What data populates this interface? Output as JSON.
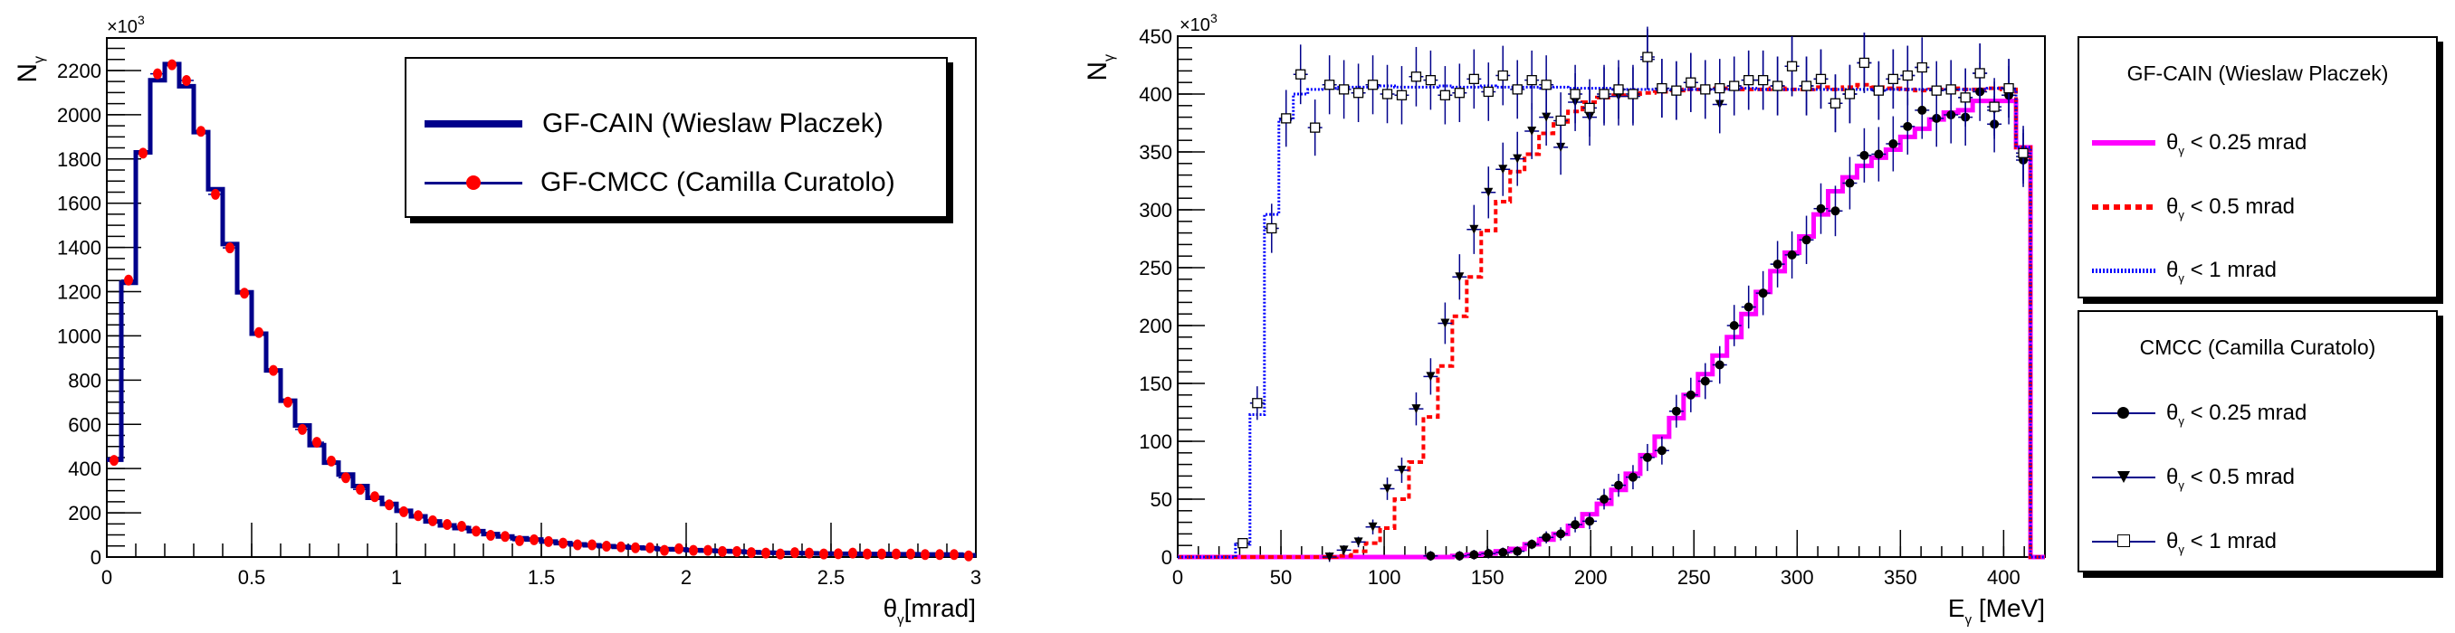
{
  "chart_data": [
    {
      "type": "bar",
      "panel": "left",
      "title": "",
      "xlabel": "θ",
      "xlabel_sub": "γ",
      "xlabel_unit": "[mrad]",
      "ylabel": "N",
      "ylabel_sub": "γ",
      "y_multiplier": "×10",
      "y_multiplier_exp": "3",
      "xlim": [
        0,
        3
      ],
      "ylim": [
        0,
        2347
      ],
      "x_ticks": [
        "0",
        "0.5",
        "1",
        "1.5",
        "2",
        "2.5",
        "3"
      ],
      "x_tick_values": [
        0,
        0.5,
        1,
        1.5,
        2,
        2.5,
        3
      ],
      "y_ticks": [
        "0",
        "200",
        "400",
        "600",
        "800",
        "1000",
        "1200",
        "1400",
        "1600",
        "1800",
        "2000",
        "2200"
      ],
      "y_tick_values": [
        0,
        200,
        400,
        600,
        800,
        1000,
        1200,
        1400,
        1600,
        1800,
        2000,
        2200
      ],
      "bin_width": 0.05,
      "legend": {
        "position": "top-right",
        "entries": [
          {
            "label": "GF-CAIN (Wieslaw Placzek)",
            "style": "line",
            "color": "#00008b"
          },
          {
            "label": "GF-CMCC (Camilla Curatolo)",
            "style": "marker",
            "color": "#ff0000",
            "line_color": "#00008b"
          }
        ]
      },
      "series": [
        {
          "name": "GF-CAIN (Wieslaw Placzek)",
          "kind": "histogram",
          "color": "#00008b",
          "values": [
            440,
            1240,
            1830,
            2156,
            2229,
            2129,
            1921,
            1663,
            1415,
            1197,
            1010,
            844,
            707,
            595,
            506,
            427,
            373,
            321,
            268,
            240,
            209,
            184,
            161,
            143,
            131,
            117,
            104,
            93,
            85,
            79,
            70,
            63,
            57,
            53,
            49,
            46,
            43,
            40,
            36,
            34,
            31,
            29,
            27,
            25,
            22,
            20,
            19,
            18,
            17,
            16,
            15,
            15,
            14,
            14,
            13,
            13,
            12,
            12,
            11,
            8
          ]
        },
        {
          "name": "GF-CMCC (Camilla Curatolo)",
          "kind": "points",
          "color": "#ff0000",
          "values": [
            437,
            1252,
            1826,
            2185,
            2226,
            2155,
            1925,
            1640,
            1398,
            1193,
            1015,
            844,
            700,
            577,
            519,
            434,
            359,
            306,
            273,
            236,
            205,
            187,
            164,
            147,
            139,
            117,
            98,
            93,
            74,
            78,
            70,
            63,
            55,
            55,
            49,
            46,
            42,
            42,
            30,
            38,
            30,
            30,
            25,
            25,
            20,
            18,
            14,
            20,
            18,
            14,
            15,
            18,
            14,
            14,
            14,
            14,
            11,
            11,
            11,
            5
          ]
        }
      ]
    },
    {
      "type": "bar",
      "panel": "right",
      "title": "",
      "xlabel": "E",
      "xlabel_sub": "γ",
      "xlabel_unit": " [MeV]",
      "ylabel": "N",
      "ylabel_sub": "γ",
      "y_multiplier": "×10",
      "y_multiplier_exp": "3",
      "xlim": [
        0,
        420
      ],
      "ylim": [
        0,
        450
      ],
      "x_ticks": [
        "0",
        "50",
        "100",
        "150",
        "200",
        "250",
        "300",
        "350",
        "400"
      ],
      "x_tick_values": [
        0,
        50,
        100,
        150,
        200,
        250,
        300,
        350,
        400
      ],
      "y_ticks": [
        "0",
        "50",
        "100",
        "150",
        "200",
        "250",
        "300",
        "350",
        "400",
        "450"
      ],
      "y_tick_values": [
        0,
        50,
        100,
        150,
        200,
        250,
        300,
        350,
        400,
        450
      ],
      "bin_width": 7,
      "legend": {
        "position": "right",
        "groups": [
          {
            "title": "GF-CAIN (Wieslaw Placzek)",
            "entries": [
              {
                "theta": "θ",
                "sub": "γ",
                "label": " < 0.25 mrad",
                "style": "solid",
                "color": "#ff00ff"
              },
              {
                "theta": "θ",
                "sub": "γ",
                "label": " < 0.5 mrad",
                "style": "dashed",
                "color": "#ff0000"
              },
              {
                "theta": "θ",
                "sub": "γ",
                "label": " < 1 mrad",
                "style": "dotted",
                "color": "#0000ff"
              }
            ]
          },
          {
            "title": "CMCC (Camilla Curatolo)",
            "entries": [
              {
                "theta": "θ",
                "sub": "γ",
                "label": " < 0.25 mrad",
                "style": "circle",
                "color": "#000000",
                "line_color": "#00008b"
              },
              {
                "theta": "θ",
                "sub": "γ",
                "label": " < 0.5 mrad",
                "style": "triangle",
                "color": "#000000",
                "line_color": "#00008b"
              },
              {
                "theta": "θ",
                "sub": "γ",
                "label": " < 1 mrad",
                "style": "square",
                "color": "#000000",
                "line_color": "#00008b"
              }
            ]
          }
        ]
      },
      "series": [
        {
          "name": "GF-CAIN θγ < 0.25 mrad",
          "kind": "histogram",
          "color": "#ff00ff",
          "style": "solid",
          "values": [
            0,
            0,
            0,
            0,
            0,
            0,
            0,
            0,
            0,
            0,
            0,
            0,
            0,
            0,
            0,
            0,
            0,
            0,
            0,
            1,
            2,
            3,
            5,
            7,
            11,
            15,
            20,
            27,
            37,
            46,
            58,
            72,
            88,
            104,
            120,
            140,
            158,
            174,
            190,
            210,
            229,
            247,
            263,
            277,
            296,
            316,
            328,
            338,
            345,
            352,
            363,
            370,
            378,
            384,
            386,
            394,
            394,
            394,
            354,
            0
          ]
        },
        {
          "name": "GF-CAIN θγ < 0.5 mrad",
          "kind": "histogram",
          "color": "#ff0000",
          "style": "dashed",
          "values": [
            0,
            0,
            0,
            0,
            0,
            0,
            0,
            0,
            0,
            0,
            0,
            1,
            5,
            12,
            25,
            50,
            82,
            121,
            165,
            208,
            242,
            282,
            307,
            333,
            348,
            366,
            376,
            385,
            393,
            397,
            399,
            400,
            401,
            402,
            403,
            404,
            404,
            405,
            405,
            404,
            404,
            405,
            404,
            404,
            406,
            404,
            406,
            408,
            406,
            405,
            404,
            403,
            404,
            405,
            404,
            404,
            405,
            404,
            354,
            0
          ]
        },
        {
          "name": "GF-CAIN θγ < 1 mrad",
          "kind": "histogram",
          "color": "#0000ff",
          "style": "dotted",
          "values": [
            0,
            0,
            0,
            0,
            11,
            123,
            296,
            378,
            400,
            404,
            405,
            406,
            406,
            406,
            407,
            406,
            406,
            406,
            407,
            406,
            406,
            407,
            406,
            406,
            406,
            405,
            406,
            405,
            405,
            405,
            404,
            404,
            404,
            404,
            404,
            404,
            404,
            404,
            404,
            405,
            404,
            404,
            404,
            404,
            404,
            404,
            404,
            404,
            403,
            404,
            404,
            404,
            404,
            404,
            404,
            404,
            405,
            404,
            354,
            0
          ]
        },
        {
          "name": "CMCC θγ < 0.25 mrad",
          "kind": "points",
          "marker": "circle",
          "color": "#000000",
          "values": [
            null,
            null,
            null,
            null,
            null,
            null,
            null,
            null,
            null,
            null,
            null,
            null,
            null,
            null,
            null,
            null,
            null,
            1,
            null,
            1,
            2,
            3,
            4,
            5,
            11,
            17,
            20,
            28,
            31,
            50,
            62,
            69,
            86,
            92,
            126,
            140,
            152,
            166,
            200,
            216,
            228,
            253,
            261,
            274,
            301,
            299,
            323,
            347,
            348,
            357,
            372,
            386,
            379,
            382,
            380,
            402,
            374,
            399,
            343,
            null
          ]
        },
        {
          "name": "CMCC θγ < 0.5 mrad",
          "kind": "points",
          "marker": "triangle",
          "color": "#000000",
          "values": [
            null,
            null,
            null,
            null,
            null,
            null,
            null,
            null,
            null,
            null,
            0,
            6,
            13,
            26,
            59,
            75,
            128,
            156,
            202,
            242,
            283,
            315,
            335,
            344,
            368,
            380,
            354,
            393,
            380,
            398,
            398,
            398,
            430,
            405,
            403,
            410,
            404,
            391,
            407,
            412,
            412,
            407,
            424,
            407,
            413,
            392,
            400,
            427,
            403,
            413,
            416,
            423,
            403,
            404,
            397,
            418,
            386,
            405,
            346,
            null
          ]
        },
        {
          "name": "CMCC θγ < 1 mrad",
          "kind": "points",
          "marker": "square",
          "color": "#000000",
          "values": [
            null,
            null,
            null,
            null,
            12,
            133,
            284,
            379,
            417,
            371,
            408,
            404,
            401,
            408,
            400,
            399,
            415,
            412,
            399,
            401,
            413,
            402,
            416,
            404,
            412,
            408,
            377,
            400,
            388,
            400,
            404,
            400,
            432,
            405,
            403,
            410,
            404,
            405,
            407,
            412,
            412,
            407,
            424,
            407,
            413,
            392,
            400,
            427,
            403,
            413,
            416,
            423,
            403,
            404,
            397,
            418,
            389,
            405,
            349,
            null
          ]
        }
      ]
    }
  ]
}
